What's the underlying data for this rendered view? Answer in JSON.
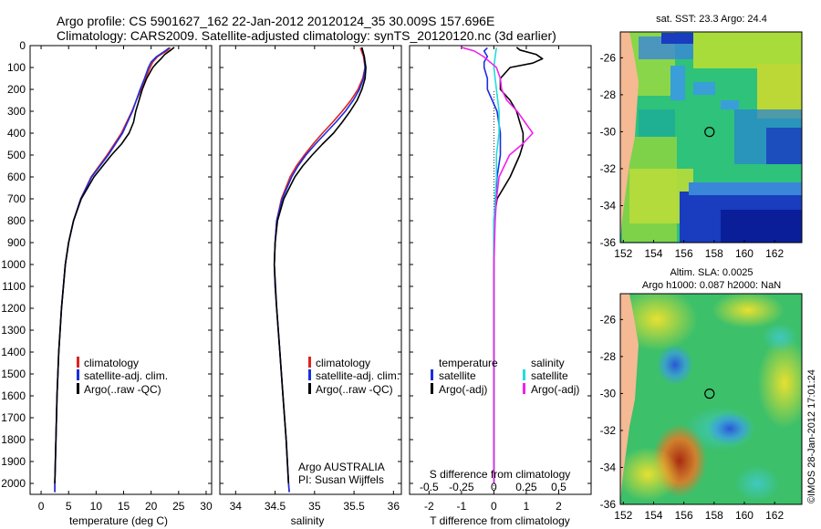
{
  "header": {
    "line1": "Argo profile: CS 5901627_162 22-Jan-2012 20120124_35 30.009S 157.696E",
    "line2": "Climatology: CARS2009. Satellite-adjusted climatology: synTS_20120120.nc (3d earlier)"
  },
  "colors": {
    "climatology": "#dd2222",
    "satellite": "#1a2ee0",
    "argo": "#000000",
    "salinity_satellite": "#22dddd",
    "salinity_argo": "#ee22ee",
    "land": "#f5b993"
  },
  "chart_data": [
    {
      "type": "line",
      "name": "temperature-profile",
      "xlabel": "temperature (deg C)",
      "xlim": [
        -2,
        31
      ],
      "ylim": [
        2050,
        0
      ],
      "xticks": [
        0,
        5,
        10,
        15,
        20,
        25,
        30
      ],
      "yticks": [
        0,
        100,
        200,
        300,
        400,
        500,
        600,
        700,
        800,
        900,
        1000,
        1100,
        1200,
        1300,
        1400,
        1500,
        1600,
        1700,
        1800,
        1900,
        2000
      ],
      "legend": {
        "placement": "lower-center",
        "entries": [
          "climatology",
          "satellite-adj. clim.",
          "Argo(..raw -QC)"
        ]
      },
      "series": [
        {
          "name": "climatology",
          "color": "#dd2222",
          "depth": [
            10,
            25,
            50,
            75,
            100,
            150,
            200,
            250,
            300,
            400,
            500,
            600,
            700,
            800,
            900,
            1000,
            1200,
            1400,
            1600,
            1800,
            2000,
            2040
          ],
          "values": [
            23.5,
            22.8,
            21.2,
            20.3,
            19.8,
            19.0,
            18.2,
            17.3,
            16.5,
            14.6,
            12.0,
            9.1,
            7.2,
            5.9,
            5.0,
            4.4,
            3.7,
            3.2,
            2.9,
            2.7,
            2.5,
            2.5
          ]
        },
        {
          "name": "satellite-adj. clim.",
          "color": "#1a2ee0",
          "depth": [
            10,
            25,
            50,
            75,
            100,
            150,
            200,
            250,
            300,
            400,
            500,
            600,
            700,
            800,
            900,
            1000,
            1200,
            1400,
            1600,
            1800,
            2000,
            2040
          ],
          "values": [
            23.3,
            22.5,
            21.0,
            20.0,
            19.5,
            18.8,
            18.0,
            17.3,
            16.6,
            14.8,
            12.2,
            9.2,
            7.2,
            5.9,
            5.0,
            4.4,
            3.7,
            3.2,
            2.9,
            2.7,
            2.5,
            2.5
          ]
        },
        {
          "name": "Argo(..raw -QC)",
          "color": "#000000",
          "depth": [
            8,
            20,
            40,
            60,
            80,
            100,
            150,
            200,
            250,
            300,
            350,
            400,
            450,
            500,
            600,
            700,
            800,
            900,
            1000,
            1200,
            1400,
            1600,
            1800,
            2000
          ],
          "values": [
            24.2,
            23.6,
            22.5,
            21.8,
            21.0,
            20.3,
            19.2,
            18.4,
            17.8,
            17.2,
            16.8,
            16.0,
            14.6,
            12.8,
            9.6,
            7.3,
            5.9,
            5.0,
            4.4,
            3.7,
            3.2,
            2.9,
            2.7,
            2.5
          ]
        }
      ]
    },
    {
      "type": "line",
      "name": "salinity-profile",
      "xlabel": "salinity",
      "xlim": [
        33.8,
        36.1
      ],
      "ylim": [
        2050,
        0
      ],
      "xticks": [
        34,
        34.5,
        35,
        35.5,
        36
      ],
      "legend": {
        "placement": "lower-right",
        "entries": [
          "climatology",
          "satellite-adj. clim.",
          "Argo(..raw -QC)"
        ]
      },
      "annotations": [
        "Argo AUSTRALIA",
        "PI: Susan Wijffels"
      ],
      "series": [
        {
          "name": "climatology",
          "color": "#dd2222",
          "depth": [
            10,
            50,
            100,
            150,
            200,
            250,
            300,
            350,
            400,
            450,
            500,
            550,
            600,
            700,
            800,
            900,
            1000,
            1100,
            1200,
            1400,
            1600,
            1800,
            2000,
            2040
          ],
          "values": [
            35.58,
            35.62,
            35.64,
            35.61,
            35.55,
            35.46,
            35.35,
            35.23,
            35.1,
            34.98,
            34.87,
            34.77,
            34.69,
            34.58,
            34.52,
            34.5,
            34.49,
            34.5,
            34.52,
            34.56,
            34.6,
            34.64,
            34.67,
            34.68
          ]
        },
        {
          "name": "satellite-adj. clim.",
          "color": "#1a2ee0",
          "depth": [
            10,
            50,
            100,
            150,
            200,
            250,
            300,
            350,
            400,
            450,
            500,
            550,
            600,
            700,
            800,
            900,
            1000,
            1100,
            1200,
            1400,
            1600,
            1800,
            2000,
            2040
          ],
          "values": [
            35.6,
            35.63,
            35.64,
            35.62,
            35.57,
            35.49,
            35.39,
            35.27,
            35.14,
            35.01,
            34.89,
            34.79,
            34.71,
            34.59,
            34.52,
            34.5,
            34.49,
            34.5,
            34.52,
            34.56,
            34.6,
            34.64,
            34.67,
            34.68
          ]
        },
        {
          "name": "Argo(..raw -QC)",
          "color": "#000000",
          "depth": [
            8,
            50,
            100,
            150,
            200,
            250,
            300,
            350,
            400,
            450,
            500,
            550,
            600,
            700,
            800,
            900,
            1000,
            1200,
            1400,
            1600,
            1800,
            2000
          ],
          "values": [
            35.6,
            35.63,
            35.65,
            35.64,
            35.6,
            35.54,
            35.45,
            35.35,
            35.24,
            35.1,
            34.97,
            34.85,
            34.75,
            34.61,
            34.53,
            34.5,
            34.49,
            34.52,
            34.56,
            34.6,
            34.64,
            34.67
          ]
        }
      ]
    },
    {
      "type": "line",
      "name": "difference-profile",
      "xlabel": "T difference from climatology",
      "top_axis_label": "S difference from climatology",
      "xlim": [
        -2.6,
        3.0
      ],
      "ylim": [
        2050,
        0
      ],
      "xticks": [
        -2,
        -1,
        0,
        1,
        2
      ],
      "top_ticks": [
        -0.5,
        -0.25,
        0,
        0.25,
        0.5
      ],
      "top_tick_labels": [
        "-0.5",
        "-0.25",
        "0",
        "0.25",
        "0.5"
      ],
      "legend": {
        "placement": "lower-center",
        "left_header": "temperature",
        "right_header": "salinity",
        "left_entries": [
          "satellite",
          "Argo(-adj)"
        ],
        "right_entries": [
          "satellite",
          "Argo(-adj)"
        ]
      },
      "series": [
        {
          "name": "temperature satellite",
          "color": "#1a2ee0",
          "depth": [
            10,
            25,
            50,
            75,
            100,
            150,
            200,
            300,
            400,
            500,
            600,
            800,
            1000,
            1500,
            2000
          ],
          "values": [
            -0.2,
            -0.3,
            -0.2,
            -0.3,
            -0.3,
            -0.2,
            -0.2,
            0.1,
            0.2,
            0.2,
            0.1,
            0.0,
            0.0,
            0.0,
            0.0
          ]
        },
        {
          "name": "temperature Argo(-adj)",
          "color": "#000000",
          "depth": [
            8,
            20,
            40,
            60,
            80,
            100,
            150,
            200,
            250,
            300,
            350,
            400,
            450,
            500,
            600,
            700,
            800,
            1000,
            1400,
            1800,
            2000
          ],
          "values": [
            0.7,
            0.8,
            1.3,
            1.5,
            1.2,
            0.5,
            0.2,
            0.2,
            0.5,
            0.7,
            0.8,
            0.9,
            0.9,
            0.8,
            0.5,
            0.1,
            0.0,
            0.0,
            0.0,
            0.0,
            0.0
          ]
        },
        {
          "name": "salinity satellite",
          "color": "#22dddd",
          "depth": [
            10,
            50,
            100,
            200,
            300,
            400,
            500,
            600,
            800,
            1000,
            1500,
            2000
          ],
          "values": [
            0.02,
            0.01,
            0.0,
            0.02,
            0.04,
            0.04,
            0.02,
            0.02,
            0.0,
            0.0,
            0.0,
            0.0
          ]
        },
        {
          "name": "salinity Argo(-adj)",
          "color": "#ee22ee",
          "depth": [
            8,
            25,
            50,
            80,
            100,
            150,
            200,
            250,
            300,
            350,
            400,
            450,
            500,
            550,
            600,
            700,
            800,
            1000,
            1400,
            1800,
            2000
          ],
          "values": [
            -0.25,
            -0.15,
            -0.08,
            -0.02,
            0.02,
            0.05,
            0.06,
            0.1,
            0.18,
            0.24,
            0.3,
            0.22,
            0.12,
            0.08,
            0.04,
            0.02,
            0.01,
            0.0,
            0.0,
            0.0,
            0.0
          ]
        }
      ]
    },
    {
      "type": "heatmap",
      "name": "sst-map",
      "title": "sat. SST: 23.3  Argo: 24.4",
      "xlim": [
        151.8,
        163.8
      ],
      "ylim": [
        -36,
        -24.6
      ],
      "xticks": [
        152,
        154,
        156,
        158,
        160,
        162
      ],
      "yticks": [
        -26,
        -28,
        -30,
        -32,
        -34,
        -36
      ],
      "float_position": {
        "lon": 157.696,
        "lat": -30.009
      }
    },
    {
      "type": "heatmap",
      "name": "sla-map",
      "title_line1": "Altim. SLA: 0.0025",
      "title_line2": "Argo h1000: 0.087  h2000: NaN",
      "xlim": [
        151.8,
        163.8
      ],
      "ylim": [
        -36,
        -24.6
      ],
      "xticks": [
        152,
        154,
        156,
        158,
        160,
        162
      ],
      "yticks": [
        -26,
        -28,
        -30,
        -32,
        -34,
        -36
      ],
      "float_position": {
        "lon": 157.696,
        "lat": -30.009
      }
    }
  ],
  "credit": "©IMOS 28-Jan-2012 17:01:24"
}
